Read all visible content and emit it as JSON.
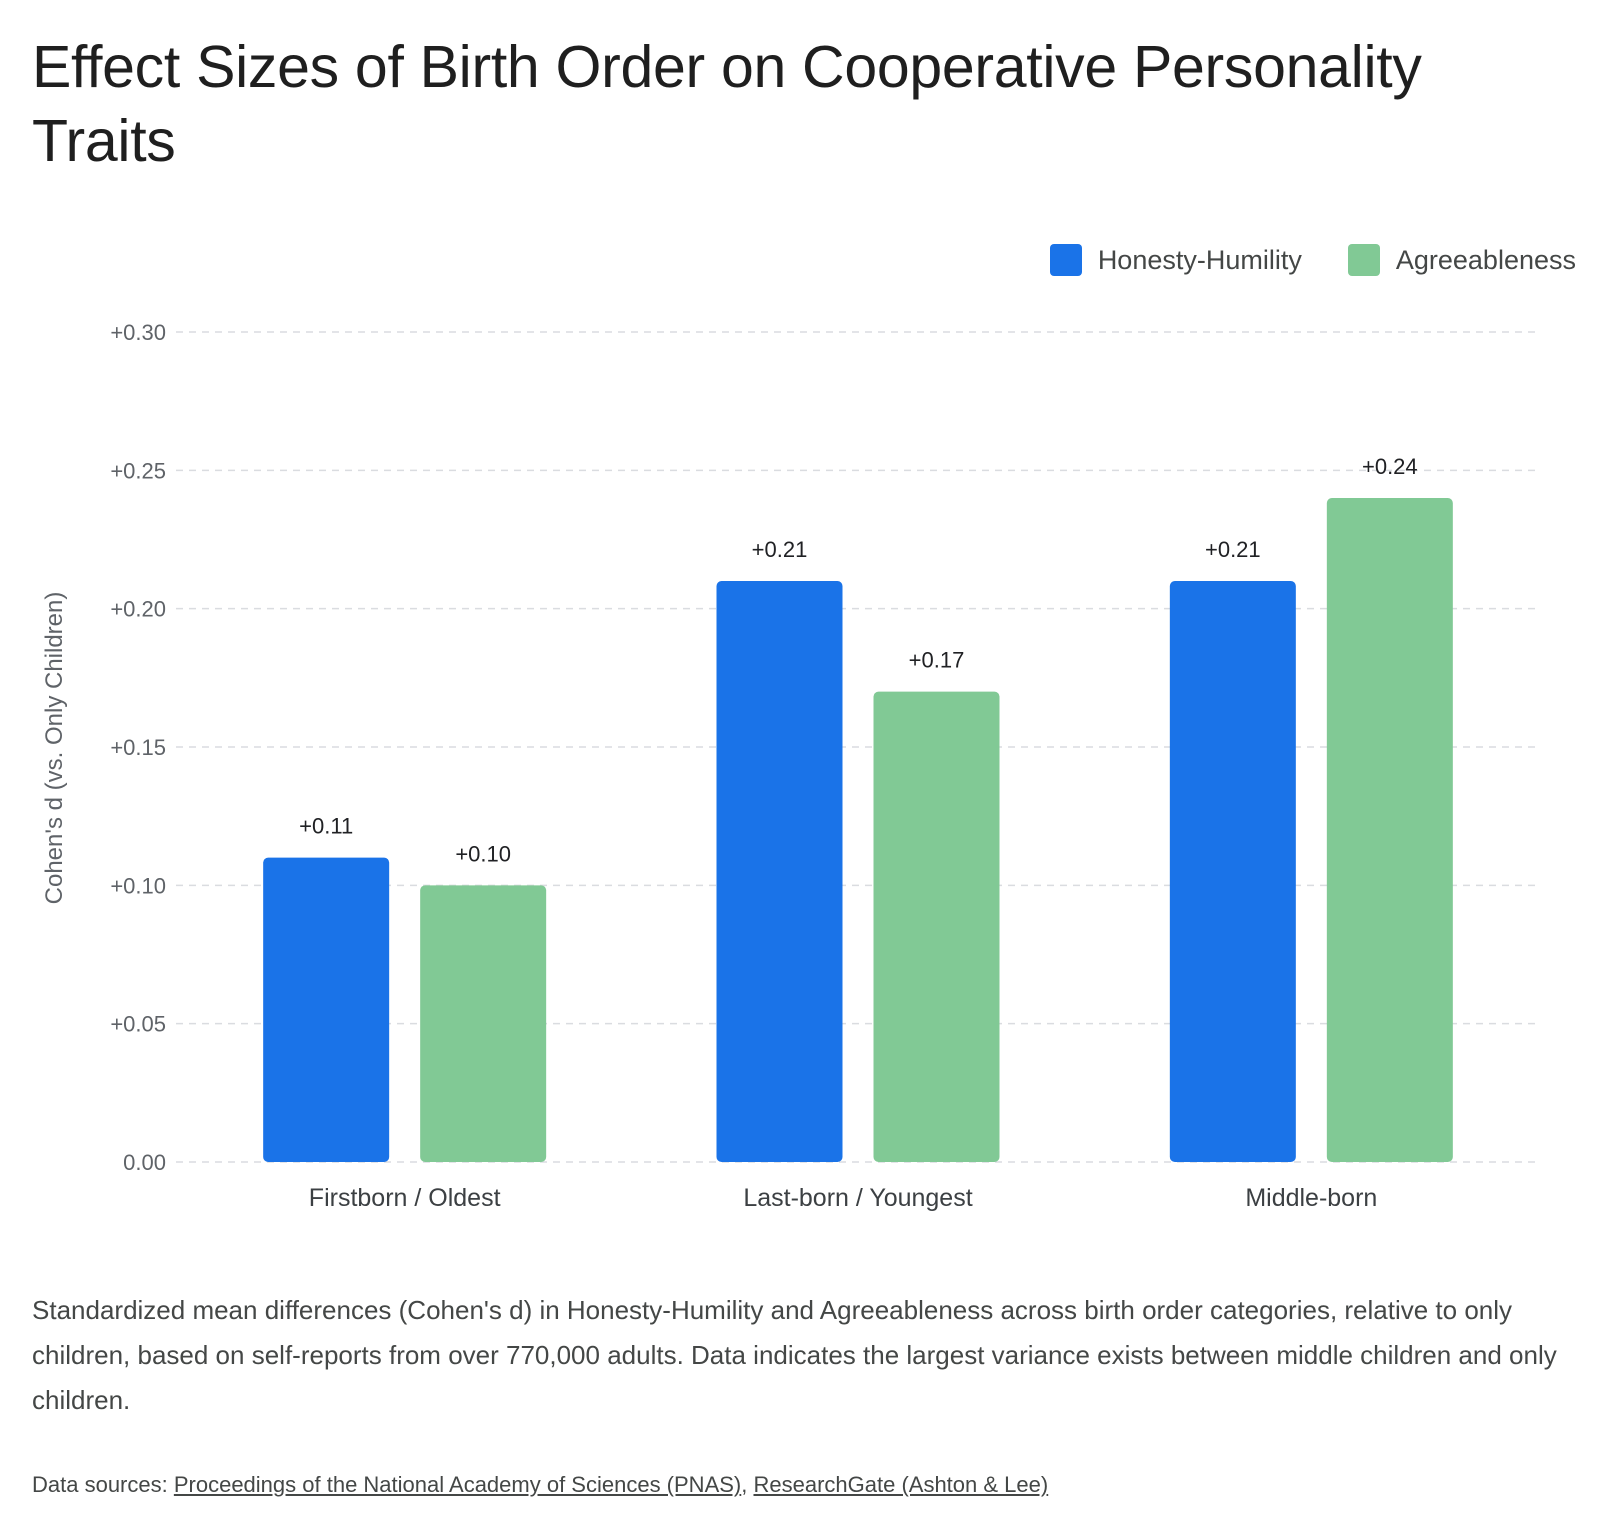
{
  "chart_data": {
    "type": "bar",
    "title": "Effect Sizes of Birth Order on Cooperative Personality Traits",
    "ylabel": "Cohen's d (vs. Only Children)",
    "xlabel": "",
    "categories": [
      "Firstborn / Oldest",
      "Last-born / Youngest",
      "Middle-born"
    ],
    "series": [
      {
        "name": "Honesty-Humility",
        "color": "#1a73e8",
        "values": [
          0.11,
          0.21,
          0.21
        ],
        "labels": [
          "+0.11",
          "+0.21",
          "+0.21"
        ]
      },
      {
        "name": "Agreeableness",
        "color": "#81c995",
        "values": [
          0.1,
          0.17,
          0.24
        ],
        "labels": [
          "+0.10",
          "+0.17",
          "+0.24"
        ]
      }
    ],
    "ylim": [
      0,
      0.3
    ],
    "yticks": [
      0,
      0.05,
      0.1,
      0.15,
      0.2,
      0.25,
      0.3
    ],
    "ytick_labels": [
      "0.00",
      "+0.05",
      "+0.10",
      "+0.15",
      "+0.20",
      "+0.25",
      "+0.30"
    ],
    "grid": true,
    "legend_position": "top-right"
  },
  "caption": "Standardized mean differences (Cohen's d) in Honesty-Humility and Agreeableness across birth order categories, relative to only children, based on self-reports from over 770,000 adults. Data indicates the largest variance exists between middle children and only children.",
  "sources": {
    "prefix": "Data sources: ",
    "links": [
      {
        "label": "Proceedings of the National Academy of Sciences (PNAS)"
      },
      {
        "label": "ResearchGate (Ashton & Lee)"
      }
    ],
    "separator": ", "
  }
}
